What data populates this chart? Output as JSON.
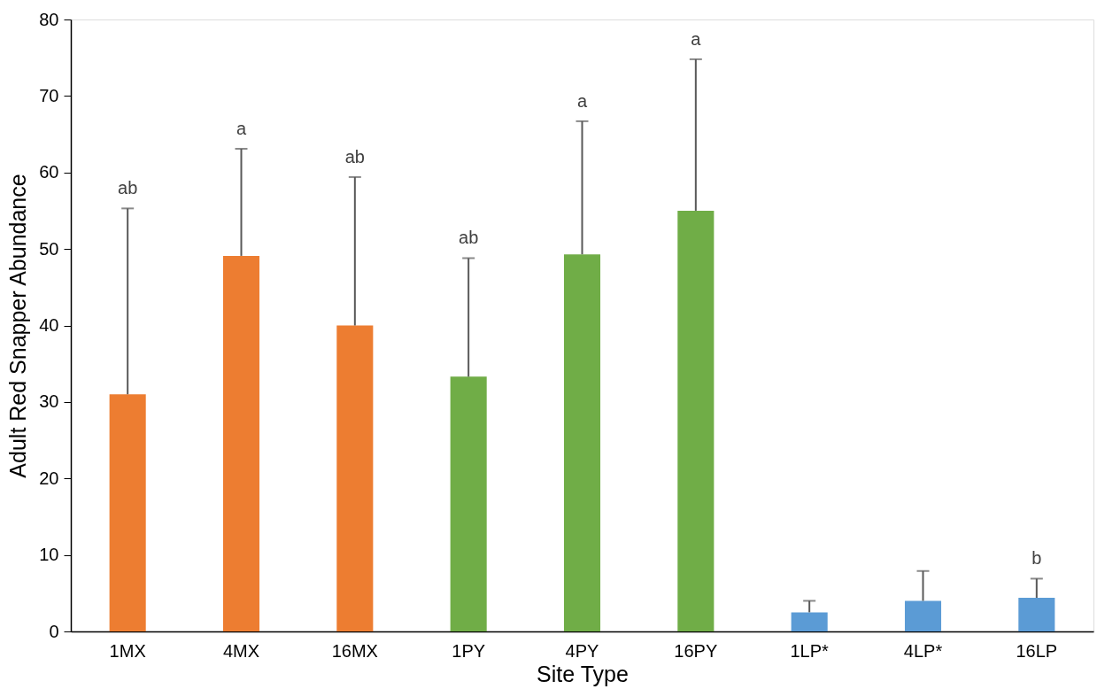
{
  "chart_data": {
    "type": "bar",
    "xlabel": "Site Type",
    "ylabel": "Adult Red Snapper Abundance",
    "categories": [
      "1MX",
      "4MX",
      "16MX",
      "1PY",
      "4PY",
      "16PY",
      "1LP*",
      "4LP*",
      "16LP"
    ],
    "values": [
      31.0,
      49.1,
      40.0,
      33.3,
      49.3,
      55.0,
      2.5,
      4.0,
      4.4
    ],
    "colors": [
      "#ed7d31",
      "#ed7d31",
      "#ed7d31",
      "#70ad47",
      "#70ad47",
      "#70ad47",
      "#5b9bd5",
      "#5b9bd5",
      "#5b9bd5"
    ],
    "errors": [
      [
        31.0,
        55.3
      ],
      [
        49.1,
        63.1
      ],
      [
        40.0,
        59.4
      ],
      [
        33.3,
        48.8
      ],
      [
        49.3,
        66.7
      ],
      [
        55.0,
        74.8
      ],
      [
        2.5,
        4.0
      ],
      [
        4.0,
        7.9
      ],
      [
        4.4,
        6.9
      ]
    ],
    "ylim": [
      0,
      80
    ],
    "yticks": [
      0,
      10,
      20,
      30,
      40,
      50,
      60,
      70,
      80
    ],
    "grid": false,
    "annotations": [
      {
        "text": "ab",
        "x": "1MX",
        "y": 55.3
      },
      {
        "text": "a",
        "x": "4MX",
        "y": 63.1
      },
      {
        "text": "ab",
        "x": "16MX",
        "y": 59.4
      },
      {
        "text": "ab",
        "x": "1PY",
        "y": 48.8
      },
      {
        "text": "a",
        "x": "4PY",
        "y": 66.7
      },
      {
        "text": "a",
        "x": "16PY",
        "y": 74.8
      },
      {
        "text": "b",
        "x": "16LP",
        "y": 6.9
      }
    ]
  }
}
